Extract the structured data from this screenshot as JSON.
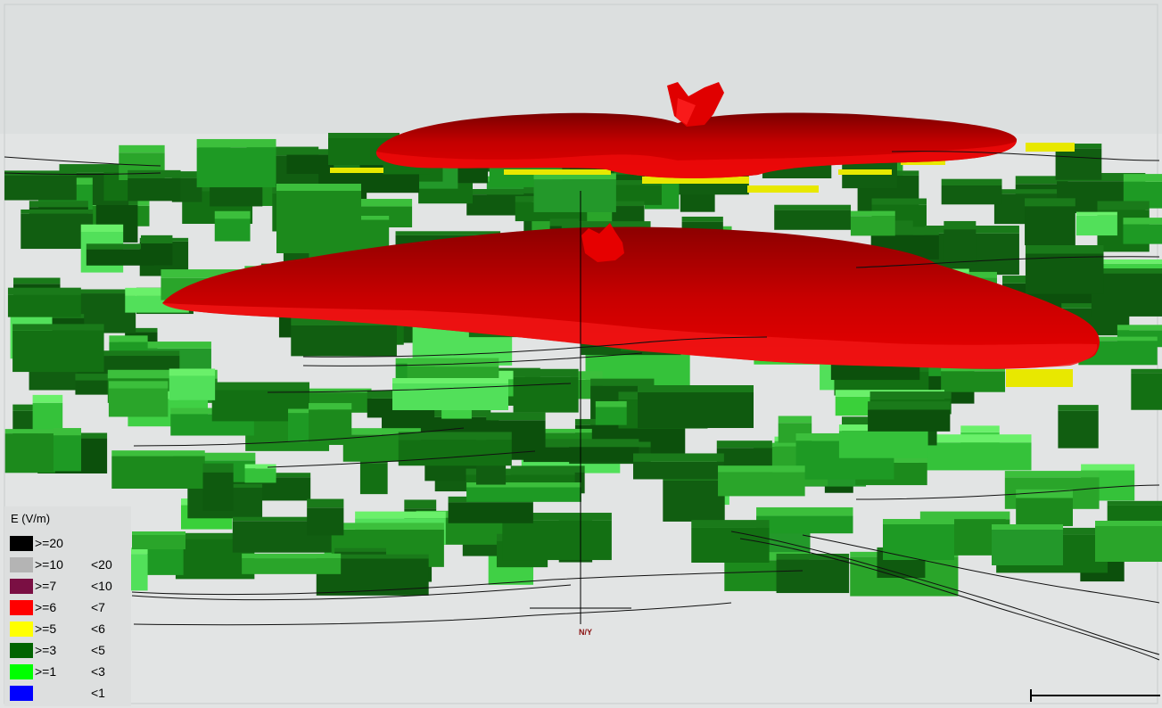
{
  "view": {
    "description_colors": {
      "sky": "#dcdfdf",
      "ground": "#e2e4e4",
      "field_pattern": "#c20000"
    }
  },
  "legend": {
    "title": "E (V/m)",
    "items": [
      {
        "lo": ">=20",
        "hi": "",
        "color": "#000000"
      },
      {
        "lo": ">=10",
        "hi": "<20",
        "color": "#b4b4b4"
      },
      {
        "lo": ">=7",
        "hi": "<10",
        "color": "#7a0f43"
      },
      {
        "lo": ">=6",
        "hi": "<7",
        "color": "#ff0000"
      },
      {
        "lo": ">=5",
        "hi": "<6",
        "color": "#ffff00"
      },
      {
        "lo": ">=3",
        "hi": "<5",
        "color": "#006400"
      },
      {
        "lo": ">=1",
        "hi": "<3",
        "color": "#00ff00"
      },
      {
        "lo": "",
        "hi": "<1",
        "color": "#0000ff"
      }
    ]
  },
  "axis_label": "N/Y"
}
